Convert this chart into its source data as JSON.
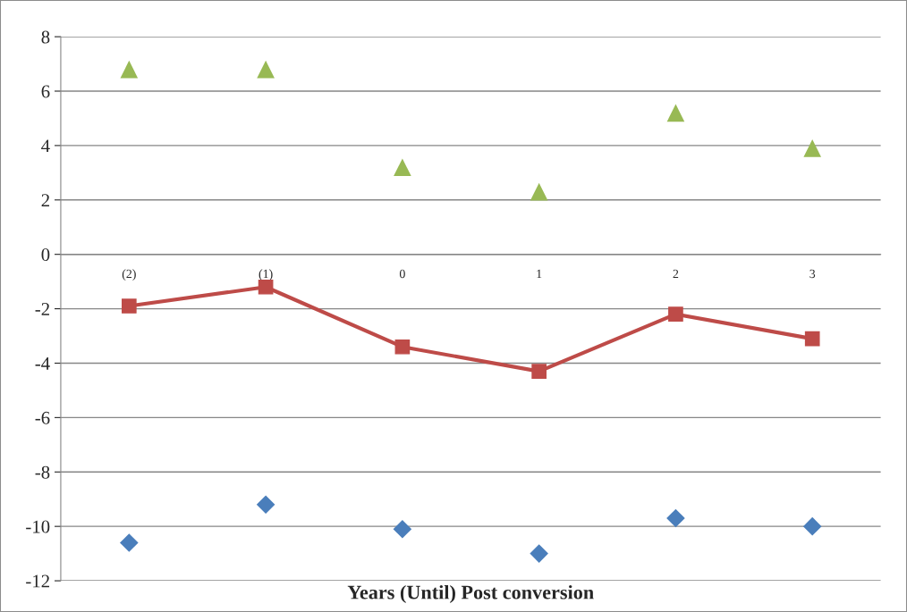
{
  "chart_data": {
    "type": "line",
    "xlabel": "Years (Until) Post conversion",
    "categories": [
      "(2)",
      "(1)",
      "0",
      "1",
      "2",
      "3"
    ],
    "series": [
      {
        "type": "scatter",
        "color": "#4a7ebb",
        "marker": "diamond",
        "values": [
          -10.6,
          -9.2,
          -10.1,
          -11.0,
          -9.7,
          -10.0
        ]
      },
      {
        "color": "#be4b48",
        "marker": "square",
        "line_style": "solid",
        "values": [
          -1.9,
          -1.2,
          -3.4,
          -4.3,
          -2.2,
          -3.1
        ]
      },
      {
        "type": "scatter",
        "color": "#98b954",
        "marker": "triangle",
        "values": [
          6.8,
          6.8,
          3.2,
          2.3,
          5.2,
          3.9
        ]
      }
    ],
    "ylim": [
      -12,
      8
    ],
    "yticks": [
      -12,
      -10,
      -8,
      -6,
      -4,
      -2,
      0,
      2,
      4,
      6,
      8
    ],
    "grid": "y",
    "legend": false
  }
}
